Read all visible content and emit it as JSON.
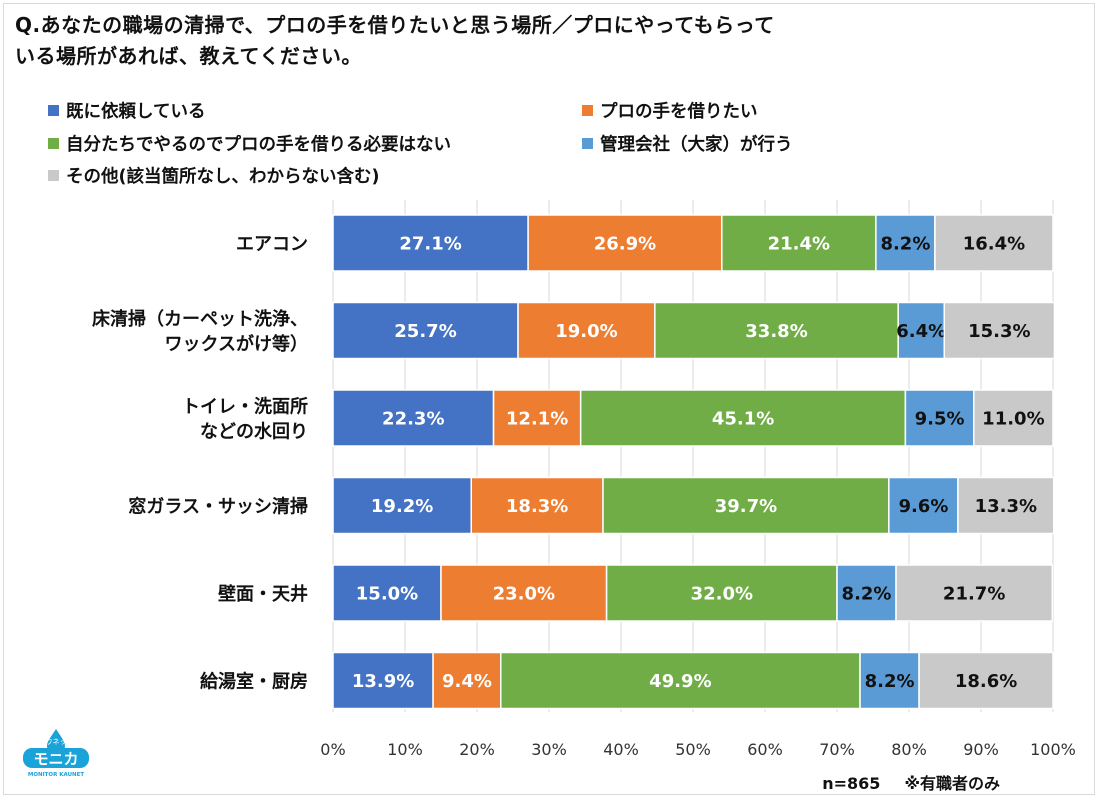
{
  "question": "Q.あなたの職場の清掃で、プロの手を借りたいと思う場所／プロにやってもらっている場所があれば、教えてください。",
  "question_lines": [
    "Q.あなたの職場の清掃で、プロの手を借りたいと思う場所／プロにやってもらって",
    "いる場所があれば、教えてください。"
  ],
  "sample_size": "n=865",
  "population_note": "※有職者のみ",
  "logo": {
    "small_text": "カウネット",
    "main_text": "モニカ",
    "sub_text": "MONITOR KAUNET",
    "color": "#1aa3d9",
    "icon": "water-drop-logo"
  },
  "chart_data": {
    "type": "bar",
    "orientation": "horizontal",
    "stacked": true,
    "categories": [
      "エアコン",
      "床清掃（カーペット洗浄、ワックスがけ等）",
      "トイレ・洗面所などの水回り",
      "窓ガラス・サッシ清掃",
      "壁面・天井",
      "給湯室・厨房"
    ],
    "category_lines": [
      [
        "エアコン"
      ],
      [
        "床清掃（カーペット洗浄、",
        "ワックスがけ等）"
      ],
      [
        "トイレ・洗面所",
        "などの水回り"
      ],
      [
        "窓ガラス・サッシ清掃"
      ],
      [
        "壁面・天井"
      ],
      [
        "給湯室・厨房"
      ]
    ],
    "series": [
      {
        "name": "既に依頼している",
        "color": "#4472c4",
        "label_color": "#ffffff",
        "values": [
          27.1,
          25.7,
          22.3,
          19.2,
          15.0,
          13.9
        ]
      },
      {
        "name": "プロの手を借りたい",
        "color": "#ed7d31",
        "label_color": "#ffffff",
        "values": [
          26.9,
          19.0,
          12.1,
          18.3,
          23.0,
          9.4
        ]
      },
      {
        "name": "自分たちでやるのでプロの手を借りる必要はない",
        "color": "#70ad47",
        "label_color": "#ffffff",
        "values": [
          21.4,
          33.8,
          45.1,
          39.7,
          32.0,
          49.9
        ]
      },
      {
        "name": "管理会社（大家）が行う",
        "color": "#5b9bd5",
        "label_color": "#111111",
        "values": [
          8.2,
          6.4,
          9.5,
          9.6,
          8.2,
          8.2
        ]
      },
      {
        "name": "その他(該当箇所なし、わからない含む)",
        "color": "#c9c9c9",
        "label_color": "#111111",
        "values": [
          16.4,
          15.3,
          11.0,
          13.3,
          21.7,
          18.6
        ]
      }
    ],
    "data_labels": [
      [
        "27.1%",
        "26.9%",
        "21.4%",
        "8.2%",
        "16.4%"
      ],
      [
        "25.7%",
        "19.0%",
        "33.8%",
        "6.4%",
        "15.3%"
      ],
      [
        "22.3%",
        "12.1%",
        "45.1%",
        "9.5%",
        "11.0%"
      ],
      [
        "19.2%",
        "18.3%",
        "39.7%",
        "9.6%",
        "13.3%"
      ],
      [
        "15.0%",
        "23.0%",
        "32.0%",
        "8.2%",
        "21.7%"
      ],
      [
        "13.9%",
        "9.4%",
        "49.9%",
        "8.2%",
        "18.6%"
      ]
    ],
    "x_ticks": [
      "0%",
      "10%",
      "20%",
      "30%",
      "40%",
      "50%",
      "60%",
      "70%",
      "80%",
      "90%",
      "100%"
    ],
    "xlim": [
      0,
      100
    ],
    "grid": "vertical",
    "legend_position": "top"
  }
}
